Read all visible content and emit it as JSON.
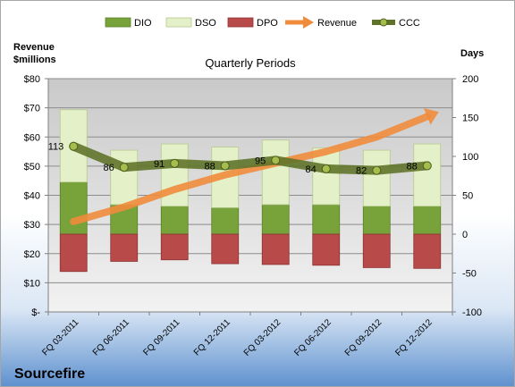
{
  "company": "Sourcefire",
  "chart_data": {
    "type": "bar",
    "title": "Quarterly Periods",
    "left_axis_label_line1": "Revenue",
    "left_axis_label_line2": "$millions",
    "right_axis_label": "Days",
    "categories": [
      "FQ 03-2011",
      "FQ 06-2011",
      "FQ 09-2011",
      "FQ 12-2011",
      "FQ 03-2012",
      "FQ 06-2012",
      "FQ 09-2012",
      "FQ 12-2012"
    ],
    "left_ylim": [
      0,
      80
    ],
    "left_ticks": [
      "$-",
      "$10",
      "$20",
      "$30",
      "$40",
      "$50",
      "$60",
      "$70",
      "$80"
    ],
    "right_ylim": [
      -100,
      200
    ],
    "right_ticks": [
      "-100",
      "-50",
      "0",
      "50",
      "100",
      "150",
      "200"
    ],
    "grid": true,
    "legend_position": "top",
    "series": [
      {
        "name": "DIO",
        "kind": "stacked-bar",
        "axis": "days",
        "color": "#77a33a",
        "values": [
          67,
          38,
          36,
          34,
          38,
          38,
          36,
          36
        ]
      },
      {
        "name": "DSO",
        "kind": "stacked-bar",
        "axis": "days",
        "color": "#e4f0c8",
        "values": [
          93,
          70,
          80,
          78,
          83,
          73,
          72,
          80
        ]
      },
      {
        "name": "DPO",
        "kind": "stacked-bar-negative",
        "axis": "days",
        "color": "#b84a4a",
        "values": [
          -48,
          -35,
          -33,
          -38,
          -39,
          -40,
          -43,
          -44
        ]
      },
      {
        "name": "Revenue",
        "kind": "arrow-line",
        "axis": "revenue",
        "color": "#ef8c3c",
        "values": [
          31,
          36,
          42,
          47,
          51,
          55,
          60,
          67
        ]
      },
      {
        "name": "CCC",
        "kind": "line",
        "axis": "days",
        "color": "#6b7f2a",
        "values": [
          113,
          86,
          91,
          88,
          95,
          84,
          82,
          88
        ]
      }
    ],
    "ccc_labels": [
      "113",
      "86",
      "91",
      "88",
      "95",
      "84",
      "82",
      "88"
    ]
  }
}
